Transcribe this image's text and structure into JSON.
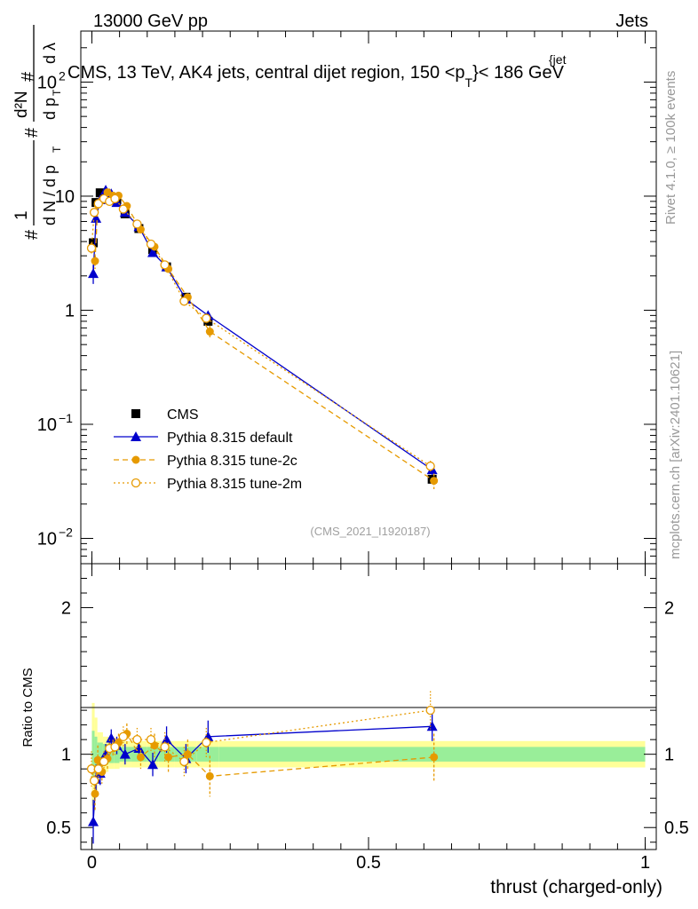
{
  "header": {
    "energy_label": "13000 GeV pp",
    "category_label": "Jets",
    "title_main": "CMS, 13 TeV, AK4 jets, central dijet region, 150 <p",
    "title_sub": "T",
    "title_sup": "{jet",
    "title_tail": "}< 186 GeV",
    "side_label_rivet": "Rivet 4.1.0, ≥ 100k events",
    "side_label_mcplots": "mcplots.cern.ch [arXiv:2401.10621]",
    "analysis_id": "(CMS_2021_I1920187)"
  },
  "chart_data": {
    "type": "line",
    "xlabel": "thrust (charged-only)",
    "main_ylabel": "1/N dN/dp_T d²N/dp_T dλ",
    "ratio_ylabel": "Ratio to CMS",
    "xlim": [
      -0.02,
      1.02
    ],
    "main_yscale": "log",
    "main_ylim": [
      0.006,
      280
    ],
    "ratio_ylim": [
      0.35,
      2.3
    ],
    "x_ticks": [
      0,
      0.5,
      1
    ],
    "x_tick_labels": [
      "0",
      "0.5",
      "1"
    ],
    "main_y_ticks": [
      0.01,
      0.1,
      1,
      10,
      100
    ],
    "main_y_tick_labels": [
      [
        "10",
        "−2"
      ],
      [
        "10",
        "−1"
      ],
      [
        "1",
        ""
      ],
      [
        "10",
        ""
      ],
      [
        "10",
        "2"
      ]
    ],
    "ratio_y_ticks": [
      0.5,
      1,
      2
    ],
    "ratio_y_tick_labels": [
      "0.5",
      "1",
      "2"
    ],
    "x_bins": [
      0.0,
      0.005,
      0.01,
      0.02,
      0.03,
      0.04,
      0.05,
      0.07,
      0.1,
      0.12,
      0.15,
      0.19,
      0.23,
      1.0
    ],
    "x": [
      0.0025,
      0.0075,
      0.015,
      0.025,
      0.035,
      0.045,
      0.06,
      0.085,
      0.11,
      0.135,
      0.17,
      0.21,
      0.615
    ],
    "legend": [
      {
        "name": "CMS",
        "marker": "square",
        "style": "none"
      },
      {
        "name": "Pythia 8.315 default",
        "marker": "triangle",
        "style": "solid"
      },
      {
        "name": "Pythia 8.315 tune-2c",
        "marker": "circle-filled",
        "style": "dashed"
      },
      {
        "name": "Pythia 8.315 tune-2m",
        "marker": "circle-open",
        "style": "dotted"
      }
    ],
    "series": [
      {
        "name": "CMS",
        "color": "#000000",
        "values": [
          3.9,
          8.8,
          10.7,
          10.6,
          9.6,
          9.3,
          7.0,
          5.2,
          3.4,
          2.4,
          1.3,
          0.8,
          0.033
        ],
        "errors": [
          0.4,
          0.7,
          0.6,
          0.5,
          0.4,
          0.4,
          0.3,
          0.2,
          0.15,
          0.1,
          0.08,
          0.06,
          0.003
        ],
        "ratio": [
          1.0,
          1.0,
          1.0,
          1.0,
          1.0,
          1.0,
          1.0,
          1.0,
          1.0,
          1.0,
          1.0,
          1.0,
          1.0
        ],
        "band_inner": [
          0.16,
          0.12,
          0.08,
          0.07,
          0.06,
          0.06,
          0.05,
          0.05,
          0.05,
          0.05,
          0.05,
          0.05,
          0.05
        ],
        "band_outer": [
          0.35,
          0.25,
          0.15,
          0.12,
          0.1,
          0.1,
          0.09,
          0.09,
          0.09,
          0.09,
          0.09,
          0.09,
          0.09
        ]
      },
      {
        "name": "Pythia 8.315 default",
        "color": "#0000cc",
        "values": [
          2.1,
          6.4,
          9.3,
          11.3,
          10.5,
          8.8,
          7.2,
          5.4,
          3.2,
          2.4,
          1.25,
          0.9,
          0.04
        ],
        "errors": [
          0.4,
          0.6,
          0.6,
          0.5,
          0.5,
          0.4,
          0.4,
          0.3,
          0.2,
          0.15,
          0.1,
          0.08,
          0.004
        ],
        "ratio": [
          0.54,
          0.83,
          0.87,
          1.0,
          1.11,
          1.06,
          1.0,
          1.04,
          0.93,
          1.1,
          0.97,
          1.12,
          1.19
        ],
        "ratio_err": [
          0.15,
          0.1,
          0.08,
          0.07,
          0.06,
          0.06,
          0.07,
          0.07,
          0.08,
          0.09,
          0.1,
          0.11,
          0.1
        ]
      },
      {
        "name": "Pythia 8.315 tune-2c",
        "color": "#e69a00",
        "values": [
          2.7,
          8.4,
          9.2,
          10.8,
          10.1,
          10.1,
          8.2,
          5.1,
          3.6,
          2.3,
          1.3,
          0.65,
          0.032
        ],
        "errors": [
          0.4,
          0.7,
          0.6,
          0.5,
          0.5,
          0.4,
          0.5,
          0.3,
          0.2,
          0.15,
          0.1,
          0.08,
          0.005
        ],
        "ratio": [
          0.73,
          0.96,
          0.88,
          0.97,
          1.04,
          1.08,
          1.14,
          0.98,
          1.06,
          0.98,
          1.0,
          0.85,
          0.98
        ],
        "ratio_err": [
          0.12,
          0.1,
          0.08,
          0.07,
          0.06,
          0.06,
          0.07,
          0.08,
          0.08,
          0.1,
          0.1,
          0.14,
          0.16
        ]
      },
      {
        "name": "Pythia 8.315 tune-2m",
        "color": "#e69a00",
        "values": [
          3.5,
          7.2,
          8.6,
          9.5,
          9.0,
          9.5,
          7.7,
          5.7,
          3.8,
          2.5,
          1.2,
          0.85,
          0.043
        ],
        "errors": [
          0.4,
          0.6,
          0.5,
          0.5,
          0.4,
          0.4,
          0.4,
          0.3,
          0.2,
          0.15,
          0.1,
          0.08,
          0.005
        ],
        "ratio": [
          0.9,
          0.82,
          0.9,
          0.95,
          1.04,
          1.05,
          1.12,
          1.1,
          1.1,
          1.05,
          0.95,
          1.08,
          1.3
        ],
        "ratio_err": [
          0.12,
          0.1,
          0.08,
          0.07,
          0.06,
          0.06,
          0.07,
          0.08,
          0.08,
          0.1,
          0.1,
          0.1,
          0.13
        ]
      }
    ]
  }
}
